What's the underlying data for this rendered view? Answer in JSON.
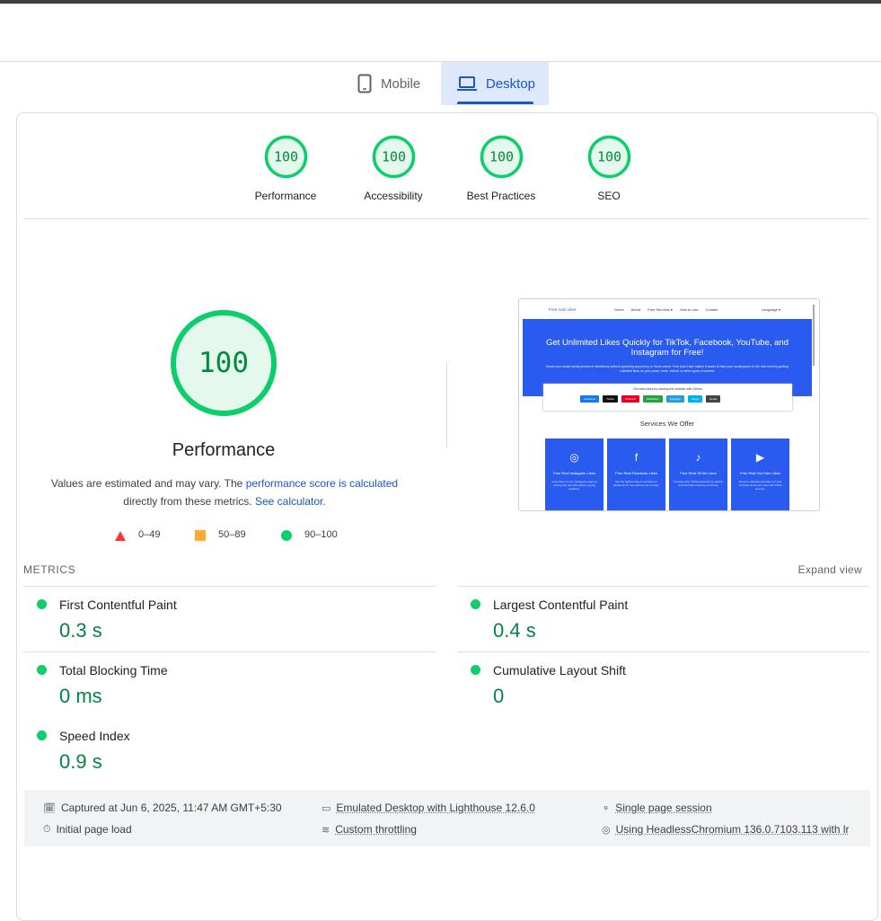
{
  "tabs": [
    "Mobile",
    "Desktop"
  ],
  "scores": [
    {
      "score": 100,
      "label": "Performance"
    },
    {
      "score": 100,
      "label": "Accessibility"
    },
    {
      "score": 100,
      "label": "Best Practices"
    },
    {
      "score": 100,
      "label": "SEO"
    }
  ],
  "main": {
    "score": 100,
    "title": "Performance",
    "note_1": "Values are estimated and may vary. The",
    "note_link": "performance score is calculated",
    "note_2": "directly from these metrics.",
    "calc_link": "See calculator",
    "note_end": "."
  },
  "legend": [
    "0–49",
    "50–89",
    "90–100"
  ],
  "preview": {
    "brand": "Free Auto Liker",
    "nav": [
      "Home",
      "About",
      "Free Services ▾",
      "How to Use",
      "Contact"
    ],
    "language": "Language ▾",
    "heading": "Get Unlimited Likes Quickly for TikTok, Facebook, YouTube, and Instagram for Free!",
    "intro": "Boost your social media presence effortlessly without spending any penny or hours online. Free Auto Liker makes it easier to take your social game to the next level by getting unlimited likes on your posts, reels, videos, or other types of content.",
    "share": "Get extra likes by sharing the website with Others",
    "buttons": [
      "Facebook",
      "Twitter",
      "Pinterest",
      "WhatsApp",
      "Telegram",
      "Skype",
      "Email"
    ],
    "services": "Services We Offer",
    "cards": [
      {
        "title": "Free Real Instagram Likes",
        "text": "Grow likes on your Instagram page by sharing the post link without paying anything."
      },
      {
        "title": "Free Real Facebook Likes",
        "text": "Get the highest rate of real likes on Facebook for free without risk or delay."
      },
      {
        "title": "Free Real TikTok Likes",
        "text": "Increase your TikTok presence by getting unlimited likes instantly and freely."
      },
      {
        "title": "Free Real YouTube Likes",
        "text": "Receive unlimited post likes on your YouTube channel for free with 100% security."
      }
    ]
  },
  "metrics": {
    "heading": "METRICS",
    "expand": "Expand view",
    "items": [
      {
        "name": "First Contentful Paint",
        "value": "0.3 s"
      },
      {
        "name": "Largest Contentful Paint",
        "value": "0.4 s"
      },
      {
        "name": "Total Blocking Time",
        "value": "0 ms"
      },
      {
        "name": "Cumulative Layout Shift",
        "value": "0"
      },
      {
        "name": "Speed Index",
        "value": "0.9 s"
      }
    ]
  },
  "footer": [
    "Captured at Jun 6, 2025, 11:47 AM GMT+5:30",
    "Initial page load",
    "Emulated Desktop with Lighthouse 12.6.0",
    "Custom throttling",
    "Single page session",
    "Using HeadlessChromium 136.0.7103.113 with lr"
  ]
}
